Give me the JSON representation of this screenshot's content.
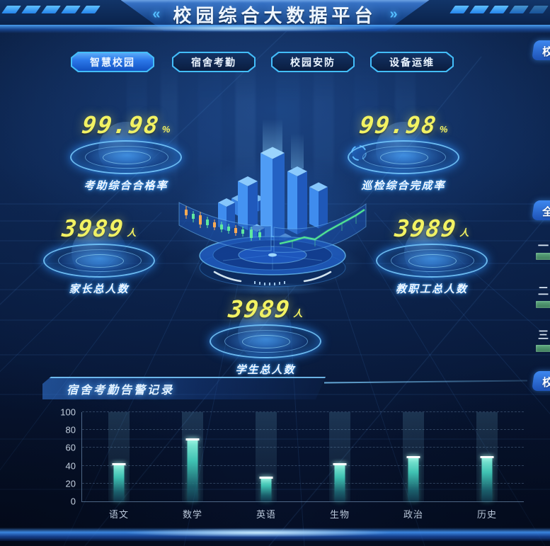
{
  "header": {
    "title": "校园综合大数据平台",
    "left_arrow": "«",
    "right_arrow": "»"
  },
  "tabs": [
    {
      "label": "智慧校园",
      "active": true
    },
    {
      "label": "宿舍考勤",
      "active": false
    },
    {
      "label": "校园安防",
      "active": false
    },
    {
      "label": "设备运维",
      "active": false
    }
  ],
  "stats": [
    {
      "value": "99.98",
      "unit": "%",
      "label": "考助综合合格率"
    },
    {
      "value": "99.98",
      "unit": "%",
      "label": "巡检综合完成率"
    },
    {
      "value": "3989",
      "unit": "人",
      "label": "家长总人数"
    },
    {
      "value": "3989",
      "unit": "人",
      "label": "教职工总人数"
    },
    {
      "value": "3989",
      "unit": "人",
      "label": "学生总人数"
    }
  ],
  "bottom_panel": {
    "title": "宿舍考勤告警记录"
  },
  "chart_data": {
    "type": "bar",
    "title": "宿舍考勤告警记录",
    "categories": [
      "语文",
      "数学",
      "英语",
      "生物",
      "政治",
      "历史"
    ],
    "values": [
      42,
      70,
      27,
      42,
      50,
      50
    ],
    "xlabel": "",
    "ylabel": "",
    "ylim": [
      0,
      100
    ],
    "yticks": [
      0,
      20,
      40,
      60,
      80,
      100
    ],
    "grid": true,
    "legend_position": "none"
  },
  "right_edge": {
    "partial_panel_headers": [
      "校",
      "全",
      "校"
    ],
    "rank_items": [
      {
        "label": "一"
      },
      {
        "label": "二"
      },
      {
        "label": "三"
      }
    ]
  },
  "colors": {
    "accent_cyan": "#3fc0ff",
    "number_yellow": "#f2f263",
    "bar_teal": "#45d6c2",
    "header_blue": "#2e6cc0"
  }
}
